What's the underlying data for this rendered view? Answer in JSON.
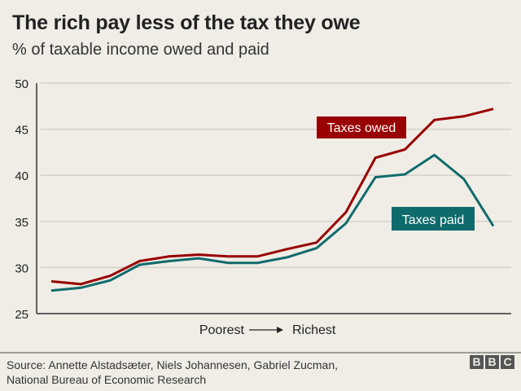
{
  "header": {
    "title": "The rich pay less of the tax they owe",
    "subtitle": "% of taxable income owed and paid"
  },
  "footer": {
    "source_line1": "Source: Annette Alstadsæter, Niels Johannesen, Gabriel Zucman,",
    "source_line2": "National Bureau of Economic Research",
    "logo_letters": [
      "B",
      "B",
      "C"
    ]
  },
  "colors": {
    "owed": "#990000",
    "paid": "#0f6b6b",
    "grid": "#d4d1ca",
    "axis": "#333333",
    "background": "#efede6"
  },
  "chart_data": {
    "type": "line",
    "title": "The rich pay less of the tax they owe",
    "subtitle": "% of taxable income owed and paid",
    "xlabel": "Poorest → Richest",
    "xlabel_left": "Poorest",
    "xlabel_right": "Richest",
    "ylabel": "",
    "ylim": [
      25,
      50
    ],
    "yticks": [
      25,
      30,
      35,
      40,
      45,
      50
    ],
    "grid": true,
    "x": [
      1,
      2,
      3,
      4,
      5,
      6,
      7,
      8,
      9,
      10,
      11,
      12,
      13,
      14,
      15,
      16
    ],
    "series": [
      {
        "name": "Taxes owed",
        "color": "#990000",
        "values": [
          28.5,
          28.2,
          29.1,
          30.7,
          31.2,
          31.4,
          31.2,
          31.2,
          32.0,
          32.7,
          36.0,
          41.9,
          42.8,
          46.0,
          46.4,
          47.2
        ]
      },
      {
        "name": "Taxes paid",
        "color": "#0f6b6b",
        "values": [
          27.5,
          27.8,
          28.6,
          30.3,
          30.7,
          31.0,
          30.5,
          30.5,
          31.1,
          32.1,
          34.8,
          39.8,
          40.1,
          42.2,
          39.6,
          34.5
        ]
      }
    ],
    "legend": "inline-labels"
  }
}
